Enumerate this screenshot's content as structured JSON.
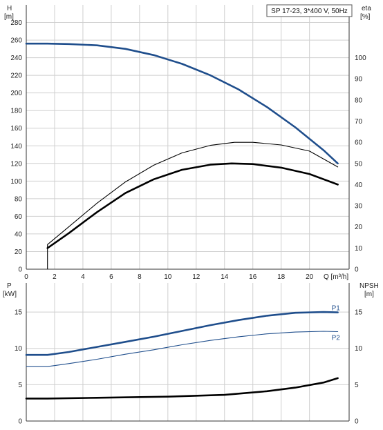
{
  "chart_data": [
    {
      "type": "line",
      "title": "SP 17-23, 3*400 V, 50Hz",
      "xlabel": "Q [m³/h]",
      "xlim": [
        0,
        22.8
      ],
      "x_ticks": [
        0,
        2,
        4,
        6,
        8,
        10,
        12,
        14,
        16,
        18,
        20
      ],
      "grid": true,
      "left_axis": {
        "label_line1": "H",
        "label_line2": "[m]",
        "ylim": [
          0,
          300
        ],
        "ticks": [
          0,
          20,
          40,
          60,
          80,
          100,
          120,
          140,
          160,
          180,
          200,
          220,
          240,
          260,
          280
        ]
      },
      "right_axis": {
        "label_line1": "eta",
        "label_line2": "[%]",
        "ylim": [
          0,
          125
        ],
        "ticks": [
          0,
          10,
          20,
          30,
          40,
          50,
          60,
          70,
          80,
          90,
          100
        ]
      },
      "series": [
        {
          "axis": "left",
          "color": "#1f4e8c",
          "style": "thick",
          "points": [
            [
              0,
              256
            ],
            [
              1.5,
              256
            ],
            [
              3,
              255.5
            ],
            [
              5,
              254
            ],
            [
              7,
              250
            ],
            [
              9,
              243
            ],
            [
              11,
              233
            ],
            [
              13,
              220
            ],
            [
              15,
              204
            ],
            [
              17,
              184
            ],
            [
              19,
              161
            ],
            [
              21,
              135
            ],
            [
              22,
              120
            ]
          ]
        },
        {
          "axis": "left",
          "color": "#000000",
          "style": "thin",
          "points": [
            [
              1.5,
              0
            ],
            [
              1.5,
              28
            ],
            [
              3,
              48
            ],
            [
              5,
              75
            ],
            [
              7,
              99
            ],
            [
              9,
              118
            ],
            [
              11,
              132
            ],
            [
              13,
              140.5
            ],
            [
              14.7,
              144
            ],
            [
              16,
              144
            ],
            [
              18,
              141
            ],
            [
              20,
              134
            ],
            [
              22,
              116
            ]
          ]
        },
        {
          "axis": "right",
          "color": "#000000",
          "style": "thick",
          "points": [
            [
              1.5,
              10
            ],
            [
              3,
              17
            ],
            [
              5,
              27
            ],
            [
              7,
              36
            ],
            [
              9,
              42.5
            ],
            [
              11,
              47
            ],
            [
              13,
              49.4
            ],
            [
              14.5,
              50
            ],
            [
              16,
              49.7
            ],
            [
              18,
              48
            ],
            [
              20,
              45
            ],
            [
              22,
              40
            ]
          ]
        }
      ]
    },
    {
      "type": "line",
      "xlim": [
        0,
        22.8
      ],
      "x_ticks": [
        0,
        2,
        4,
        6,
        8,
        10,
        12,
        14,
        16,
        18,
        20
      ],
      "grid": true,
      "left_axis": {
        "label_line1": "P",
        "label_line2": "[kW]",
        "ylim": [
          0,
          19
        ],
        "ticks": [
          0,
          5,
          10,
          15
        ]
      },
      "right_axis": {
        "label_line1": "NPSH",
        "label_line2": "[m]",
        "ylim": [
          0,
          19
        ],
        "ticks": [
          0,
          5,
          10,
          15
        ]
      },
      "series": [
        {
          "name": "P1",
          "axis": "left",
          "color": "#1f4e8c",
          "style": "thick",
          "points": [
            [
              0,
              9.1
            ],
            [
              1.5,
              9.1
            ],
            [
              3,
              9.5
            ],
            [
              5,
              10.2
            ],
            [
              7,
              10.9
            ],
            [
              9,
              11.6
            ],
            [
              11,
              12.4
            ],
            [
              13,
              13.2
            ],
            [
              15,
              13.9
            ],
            [
              17,
              14.5
            ],
            [
              19,
              14.9
            ],
            [
              21,
              15.0
            ],
            [
              22,
              14.95
            ]
          ]
        },
        {
          "name": "P2",
          "axis": "left",
          "color": "#1f4e8c",
          "style": "thin",
          "points": [
            [
              0,
              7.5
            ],
            [
              1.5,
              7.5
            ],
            [
              3,
              7.9
            ],
            [
              5,
              8.5
            ],
            [
              7,
              9.2
            ],
            [
              9,
              9.8
            ],
            [
              11,
              10.5
            ],
            [
              13,
              11.1
            ],
            [
              15,
              11.6
            ],
            [
              17,
              12.0
            ],
            [
              19,
              12.25
            ],
            [
              21,
              12.35
            ],
            [
              22,
              12.3
            ]
          ]
        },
        {
          "axis": "right",
          "color": "#000000",
          "style": "thick",
          "points": [
            [
              0,
              3.1
            ],
            [
              1.5,
              3.1
            ],
            [
              5,
              3.2
            ],
            [
              10,
              3.35
            ],
            [
              14,
              3.6
            ],
            [
              17,
              4.1
            ],
            [
              19,
              4.6
            ],
            [
              21,
              5.3
            ],
            [
              22,
              5.9
            ]
          ]
        }
      ]
    }
  ]
}
